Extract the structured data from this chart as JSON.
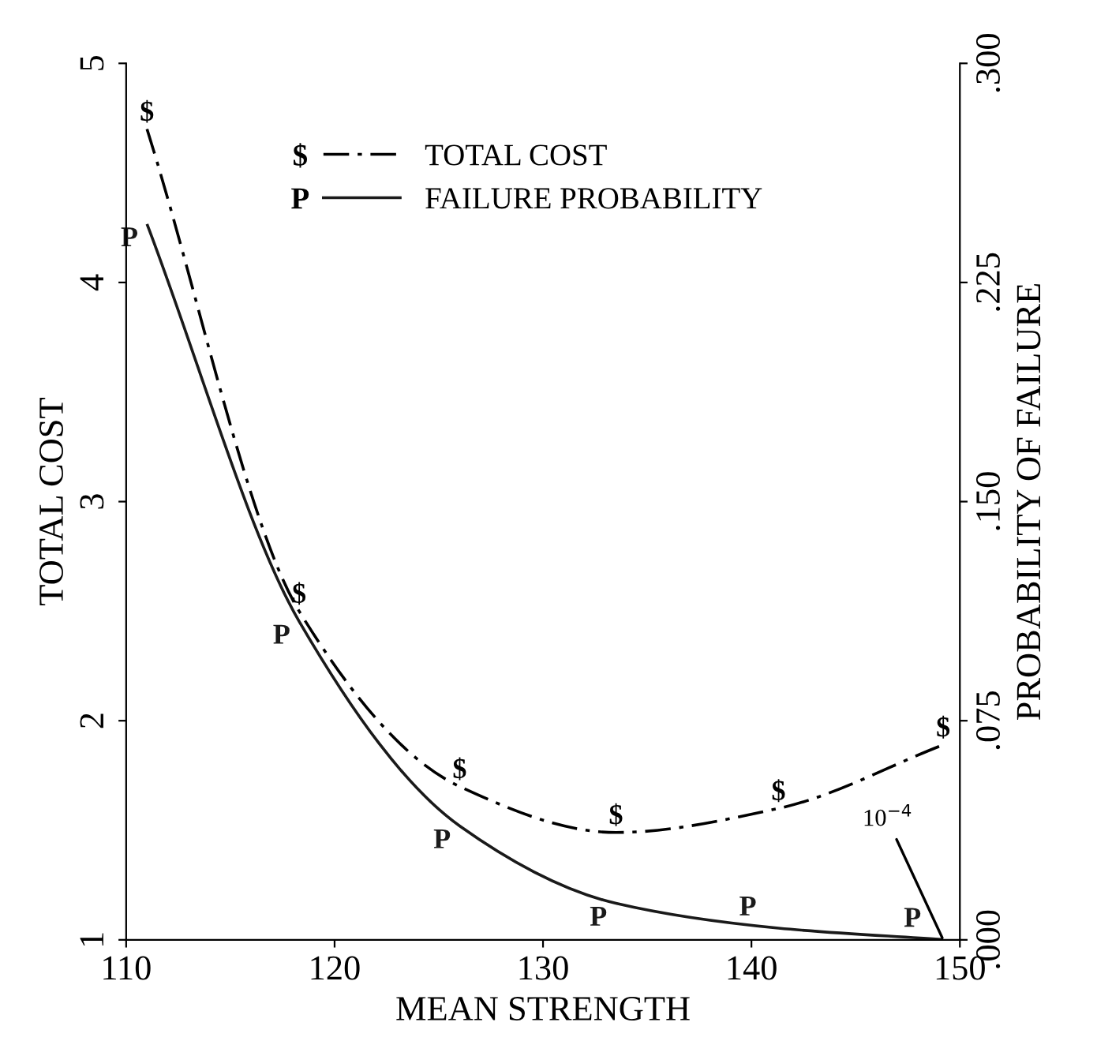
{
  "chart_data": {
    "type": "line",
    "xlabel": "MEAN STRENGTH",
    "ylabel": "TOTAL COST",
    "y2label": "PROBABILITY OF FAILURE",
    "xlim": [
      110,
      150
    ],
    "xticks": [
      110,
      120,
      130,
      140,
      150
    ],
    "ylim": [
      1,
      5
    ],
    "yticks": [
      1,
      2,
      3,
      4,
      5
    ],
    "y2lim": [
      0,
      0.3
    ],
    "y2ticks": [
      {
        "value": 0,
        "label": ".000"
      },
      {
        "value": 0.075,
        "label": ".075"
      },
      {
        "value": 0.15,
        "label": ".150"
      },
      {
        "value": 0.225,
        "label": ".225"
      },
      {
        "value": 0.3,
        "label": ".300"
      }
    ],
    "legend": "top",
    "grid": false,
    "series": [
      {
        "name": "TOTAL COST",
        "color": "#000000",
        "line_style": "dashed",
        "x": [
          111,
          118.3,
          126,
          133.5,
          141.3,
          149.2
        ],
        "values": [
          4.7,
          2.5,
          1.7,
          1.49,
          1.6,
          1.89
        ],
        "value_labels": [
          "$",
          "$",
          "$",
          "$",
          "$",
          "$"
        ]
      },
      {
        "name": "FAILURE PROBABILITY",
        "color": "#1a1a1a",
        "line_style": "solid",
        "axis": "y2",
        "x": [
          111,
          118.3,
          126,
          133.5,
          141.3,
          149.2
        ],
        "values": [
          0.245,
          0.109,
          0.039,
          0.0125,
          0.004,
          0.0001
        ],
        "value_labels": [
          "P",
          "P",
          "P",
          "P",
          "P",
          "P"
        ]
      }
    ],
    "annotations": [
      {
        "text": "10$^{−4}$",
        "x": 149.2,
        "y": 1.0
      }
    ]
  }
}
